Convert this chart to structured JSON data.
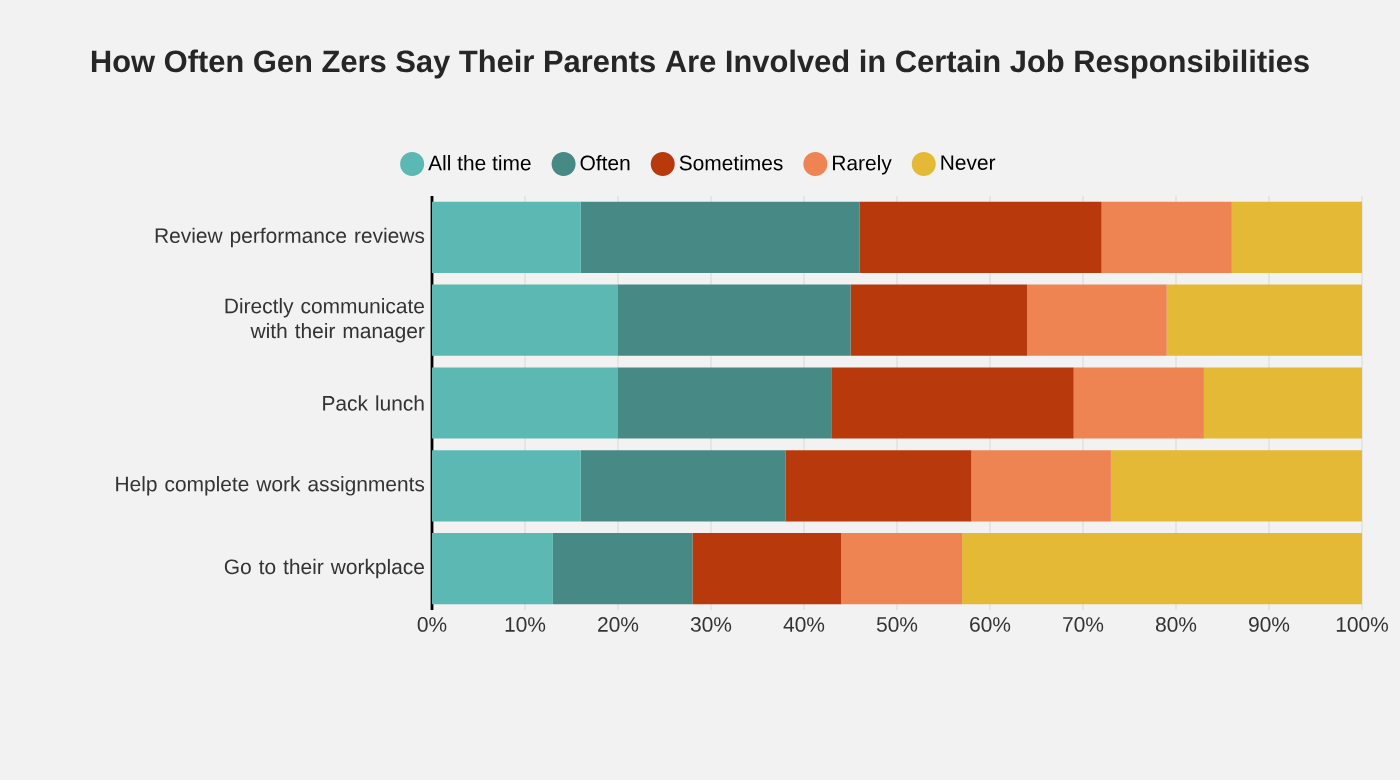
{
  "chart_data": {
    "type": "bar",
    "orientation": "horizontal",
    "stacked": true,
    "title": "How Often Gen Zers Say Their Parents Are Involved in Certain Job Responsibilities",
    "categories": [
      "Review performance reviews",
      "Directly communicate with their manager",
      "Pack lunch",
      "Help complete work assignments",
      "Go to their workplace"
    ],
    "series": [
      {
        "name": "All the time",
        "color": "#5bb8b2",
        "values": [
          16,
          20,
          20,
          16,
          13
        ]
      },
      {
        "name": "Often",
        "color": "#468985",
        "values": [
          30,
          25,
          23,
          22,
          15
        ]
      },
      {
        "name": "Sometimes",
        "color": "#b83a0c",
        "values": [
          26,
          19,
          26,
          20,
          16
        ]
      },
      {
        "name": "Rarely",
        "color": "#ee8452",
        "values": [
          14,
          15,
          14,
          15,
          13
        ]
      },
      {
        "name": "Never",
        "color": "#e3b935",
        "values": [
          14,
          21,
          17,
          27,
          43
        ]
      }
    ],
    "xlim": [
      0,
      100
    ],
    "xticks": [
      {
        "value": 0,
        "label": "0%"
      },
      {
        "value": 10,
        "label": "10%"
      },
      {
        "value": 20,
        "label": "20%"
      },
      {
        "value": 30,
        "label": "30%"
      },
      {
        "value": 40,
        "label": "40%"
      },
      {
        "value": 50,
        "label": "50%"
      },
      {
        "value": 60,
        "label": "60%"
      },
      {
        "value": 70,
        "label": "70%"
      },
      {
        "value": 80,
        "label": "80%"
      },
      {
        "value": 90,
        "label": "90%"
      },
      {
        "value": 100,
        "label": "100%"
      }
    ],
    "grid": "x",
    "legend": "top"
  }
}
